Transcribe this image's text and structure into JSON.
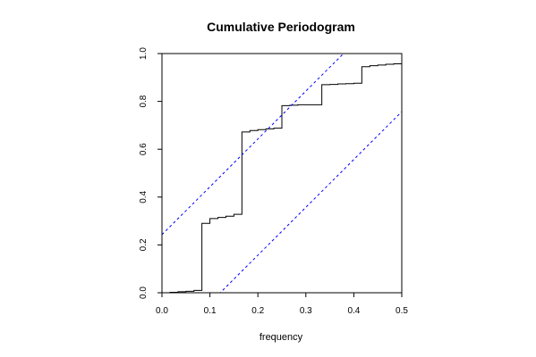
{
  "chart_data": {
    "type": "line",
    "title": "Cumulative Periodogram",
    "xlabel": "frequency",
    "ylabel": "",
    "xlim": [
      0,
      0.5
    ],
    "ylim": [
      0,
      1
    ],
    "x_ticks": [
      "0.0",
      "0.1",
      "0.2",
      "0.3",
      "0.4",
      "0.5"
    ],
    "y_ticks": [
      "0.0",
      "0.2",
      "0.4",
      "0.6",
      "0.8",
      "1.0"
    ],
    "grid": false,
    "legend": "none",
    "series": [
      {
        "style": "step",
        "color": "#000000",
        "points": [
          [
            0.0,
            0.0
          ],
          [
            0.0167,
            0.002
          ],
          [
            0.0333,
            0.004
          ],
          [
            0.05,
            0.006
          ],
          [
            0.0667,
            0.01
          ],
          [
            0.0833,
            0.29
          ],
          [
            0.1,
            0.31
          ],
          [
            0.1167,
            0.315
          ],
          [
            0.1333,
            0.32
          ],
          [
            0.15,
            0.328
          ],
          [
            0.1667,
            0.672
          ],
          [
            0.1833,
            0.678
          ],
          [
            0.2,
            0.682
          ],
          [
            0.2167,
            0.685
          ],
          [
            0.2333,
            0.688
          ],
          [
            0.25,
            0.782
          ],
          [
            0.2667,
            0.784
          ],
          [
            0.2833,
            0.786
          ],
          [
            0.3,
            0.786
          ],
          [
            0.3167,
            0.786
          ],
          [
            0.3333,
            0.87
          ],
          [
            0.35,
            0.871
          ],
          [
            0.3667,
            0.873
          ],
          [
            0.3833,
            0.874
          ],
          [
            0.4,
            0.876
          ],
          [
            0.4167,
            0.945
          ],
          [
            0.4333,
            0.949
          ],
          [
            0.45,
            0.952
          ],
          [
            0.4667,
            0.955
          ],
          [
            0.4833,
            0.957
          ],
          [
            0.5,
            0.96
          ]
        ]
      },
      {
        "style": "dashed",
        "color": "#0000ff",
        "points": [
          [
            0.0,
            0.243
          ],
          [
            0.5,
            1.243
          ]
        ]
      },
      {
        "style": "dashed",
        "color": "#0000ff",
        "points": [
          [
            0.0,
            -0.243
          ],
          [
            0.5,
            0.757
          ]
        ]
      }
    ]
  }
}
